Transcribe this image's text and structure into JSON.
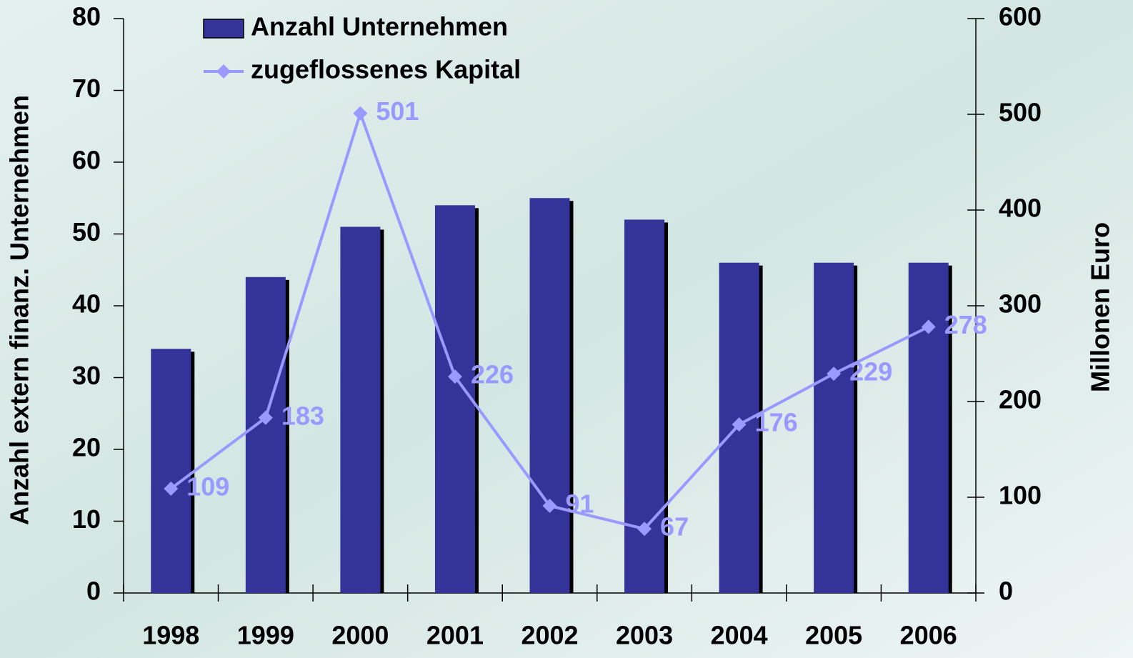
{
  "chart_data": {
    "type": "bar-line",
    "categories": [
      "1998",
      "1999",
      "2000",
      "2001",
      "2002",
      "2003",
      "2004",
      "2005",
      "2006"
    ],
    "series": [
      {
        "name": "Anzahl Unternehmen",
        "color": "#333399",
        "values": [
          34,
          44,
          51,
          54,
          55,
          52,
          46,
          46,
          46
        ]
      },
      {
        "name": "zugeflossenes Kapital",
        "color": "#9999ff",
        "axis": "y2",
        "values": [
          109,
          183,
          501,
          226,
          91,
          67,
          176,
          229,
          278
        ]
      }
    ],
    "y_label": "Anzahl extern finanz. Unternehmen",
    "y2_label": "Millonen Euro",
    "ylim": [
      0,
      80
    ],
    "yticks": [
      0,
      10,
      20,
      30,
      40,
      50,
      60,
      70,
      80
    ],
    "y2lim": [
      0,
      600
    ],
    "y2ticks": [
      0,
      100,
      200,
      300,
      400,
      500,
      600
    ],
    "legend": "top-left",
    "grid": false
  }
}
